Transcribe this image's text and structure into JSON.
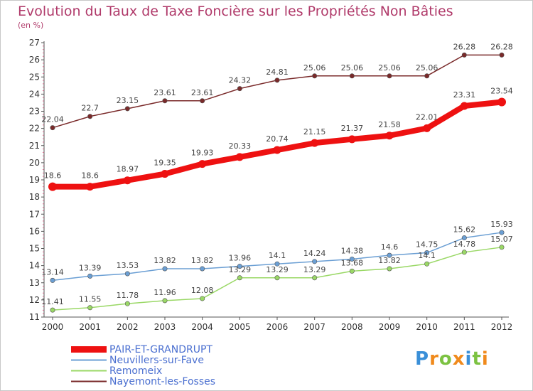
{
  "chart_data": {
    "type": "line",
    "title": "Evolution du Taux de Taxe Foncière sur les Propriétés Non Bâties",
    "subtitle": "(en %)",
    "xlabel": "",
    "ylabel": "",
    "ylim": [
      11,
      27
    ],
    "x": [
      "2000",
      "2001",
      "2002",
      "2003",
      "2004",
      "2005",
      "2006",
      "2007",
      "2008",
      "2009",
      "2010",
      "2011",
      "2012"
    ],
    "yticks": [
      "11",
      "12",
      "13",
      "14",
      "15",
      "16",
      "17",
      "18",
      "19",
      "20",
      "21",
      "22",
      "23",
      "24",
      "25",
      "26",
      "27"
    ],
    "grid": false,
    "legend_position": "bottom-left",
    "series": [
      {
        "name": "PAIR-ET-GRANDRUPT",
        "color": "#ee1111",
        "values": [
          18.6,
          18.6,
          18.97,
          19.35,
          19.93,
          20.33,
          20.74,
          21.15,
          21.37,
          21.58,
          22.01,
          23.31,
          23.54
        ],
        "labels": [
          "18.6",
          "18.6",
          "18.97",
          "19.35",
          "19.93",
          "20.33",
          "20.74",
          "21.15",
          "21.37",
          "21.58",
          "22.01",
          "23.31",
          "23.54"
        ]
      },
      {
        "name": "Neuvillers-sur-Fave",
        "color": "#6b9fd4",
        "values": [
          13.14,
          13.39,
          13.53,
          13.82,
          13.82,
          13.96,
          14.1,
          14.24,
          14.38,
          14.6,
          14.75,
          15.62,
          15.93
        ],
        "labels": [
          "13.14",
          "13.39",
          "13.53",
          "13.82",
          "13.82",
          "13.96",
          "14.1",
          "14.24",
          "14.38",
          "14.6",
          "14.75",
          "15.62",
          "15.93"
        ]
      },
      {
        "name": "Remomeix",
        "color": "#9ad866",
        "values": [
          11.41,
          11.55,
          11.78,
          11.96,
          12.08,
          13.29,
          13.29,
          13.29,
          13.68,
          13.82,
          14.1,
          14.78,
          15.07
        ],
        "labels": [
          "11.41",
          "11.55",
          "11.78",
          "11.96",
          "12.08",
          "13.29",
          "13.29",
          "13.29",
          "13.68",
          "13.82",
          "14.1",
          "14.78",
          "15.07"
        ]
      },
      {
        "name": "Nayemont-les-Fosses",
        "color": "#7a2a2a",
        "values": [
          22.04,
          22.7,
          23.15,
          23.61,
          23.61,
          24.32,
          24.81,
          25.06,
          25.06,
          25.06,
          25.06,
          26.28,
          26.28
        ],
        "labels": [
          "22.04",
          "22.7",
          "23.15",
          "23.61",
          "23.61",
          "24.32",
          "24.81",
          "25.06",
          "25.06",
          "25.06",
          "25.06",
          "26.28",
          "26.28"
        ]
      }
    ]
  },
  "logo": {
    "text": "Proxiti",
    "letters": [
      "P",
      "r",
      "o",
      "x",
      "i",
      "t",
      "i"
    ],
    "colors": [
      "#3a8fd8",
      "#f08a1c",
      "#7cc242",
      "#f08a1c",
      "#3a8fd8",
      "#7cc242",
      "#f08a1c"
    ]
  }
}
